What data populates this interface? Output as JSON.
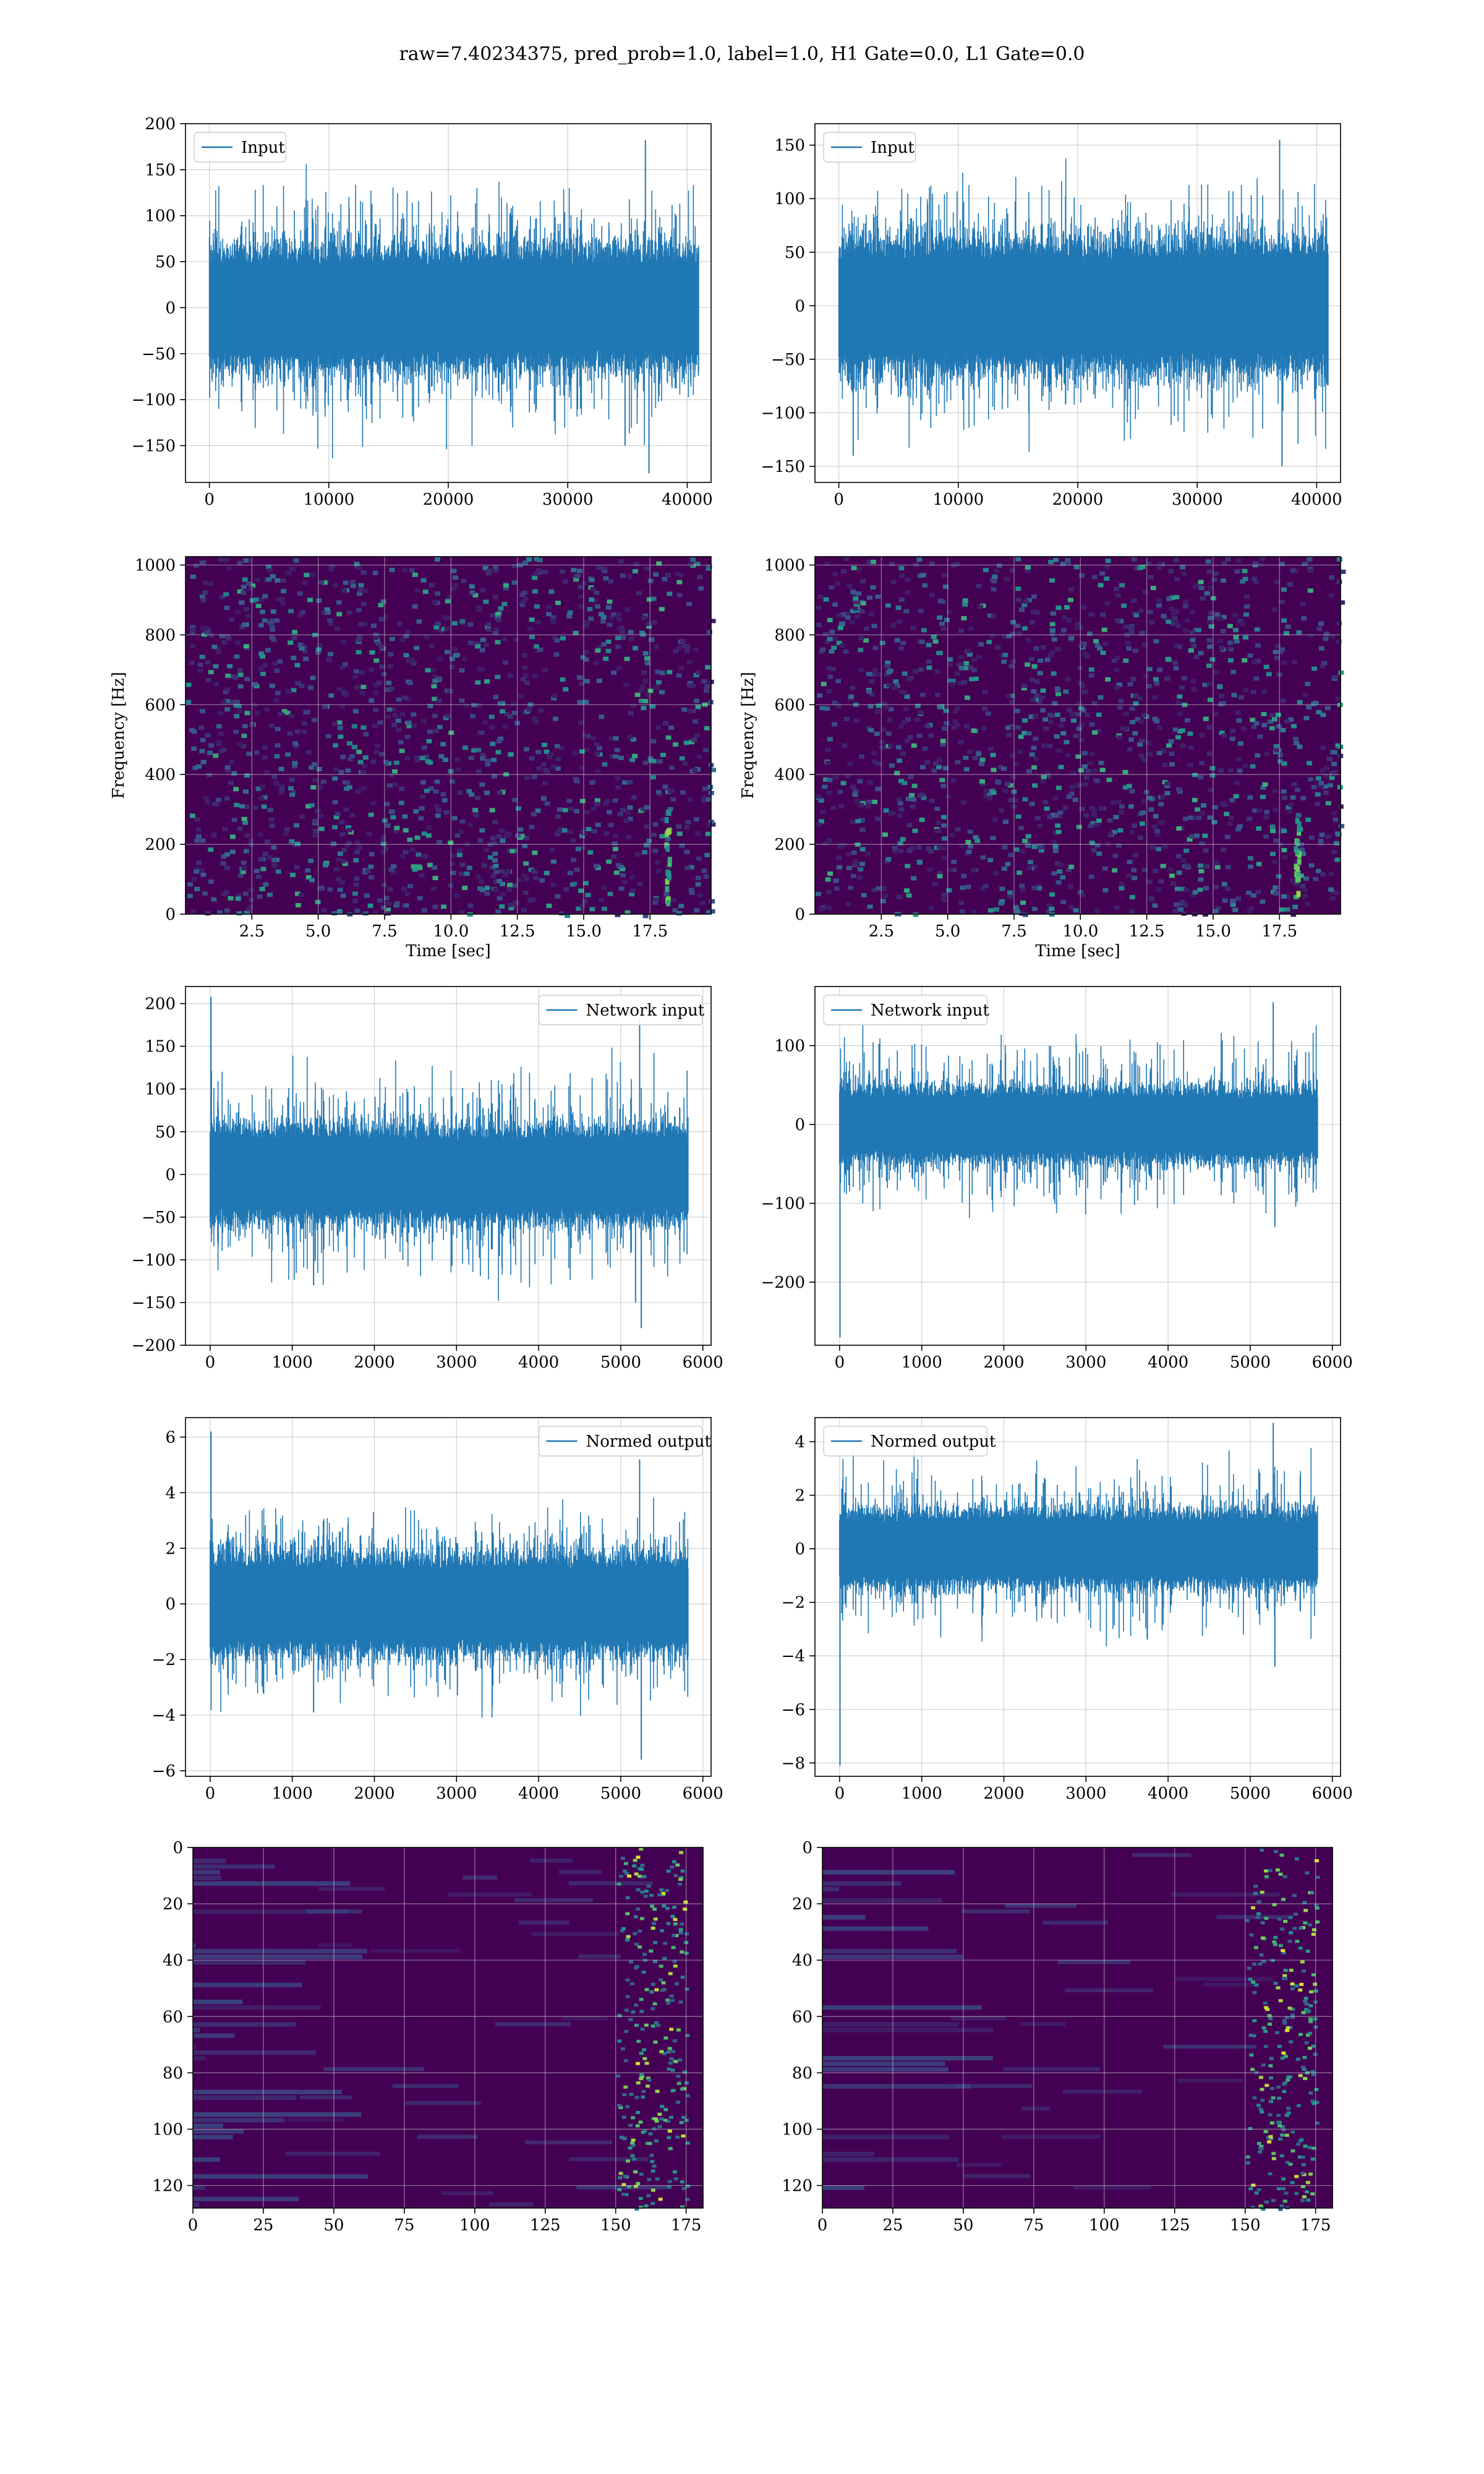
{
  "figure": {
    "suptitle": "raw=7.40234375, pred_prob=1.0, label=1.0, H1 Gate=0.0, L1 Gate=0.0"
  },
  "colors": {
    "line": "#1f77b4",
    "viridis_low": "#440154",
    "viridis_mid": "#21918c",
    "viridis_high": "#fde725",
    "grid": "#b0b0b0"
  },
  "chart_data": [
    {
      "id": "input-h1",
      "type": "line",
      "legend": "Input",
      "legend_loc": "upper-left",
      "xlim": [
        -2000,
        42000
      ],
      "ylim": [
        -190,
        200
      ],
      "xticks": [
        0,
        10000,
        20000,
        30000,
        40000
      ],
      "xticklabels": [
        "0",
        "10000",
        "20000",
        "30000",
        "40000"
      ],
      "yticks": [
        -150,
        -100,
        -50,
        0,
        50,
        100,
        150,
        200
      ],
      "yticklabels": [
        "−150",
        "−100",
        "−50",
        "0",
        "50",
        "100",
        "150",
        "200"
      ],
      "grid": true,
      "signal": {
        "x_start": 0,
        "x_end": 40960,
        "body_amplitude": 70,
        "peak_amplitude": 125,
        "spikes": [
          {
            "x": 36500,
            "y": 182
          },
          {
            "x": 36800,
            "y": -180
          },
          {
            "x": 34800,
            "y": -150
          }
        ]
      }
    },
    {
      "id": "input-l1",
      "type": "line",
      "legend": "Input",
      "legend_loc": "upper-left",
      "xlim": [
        -2000,
        42000
      ],
      "ylim": [
        -165,
        170
      ],
      "xticks": [
        0,
        10000,
        20000,
        30000,
        40000
      ],
      "xticklabels": [
        "0",
        "10000",
        "20000",
        "30000",
        "40000"
      ],
      "yticks": [
        -150,
        -100,
        -50,
        0,
        50,
        100,
        150
      ],
      "yticklabels": [
        "−150",
        "−100",
        "−50",
        "0",
        "50",
        "100",
        "150"
      ],
      "grid": true,
      "signal": {
        "x_start": 0,
        "x_end": 40960,
        "body_amplitude": 65,
        "peak_amplitude": 110,
        "spikes": [
          {
            "x": 36900,
            "y": 155
          },
          {
            "x": 37100,
            "y": -150
          },
          {
            "x": 1200,
            "y": -140
          }
        ]
      }
    },
    {
      "id": "spectrogram-h1",
      "type": "heatmap",
      "colormap": "viridis",
      "xlim": [
        0,
        19.8
      ],
      "ylim": [
        0,
        1024
      ],
      "xticks": [
        2.5,
        5.0,
        7.5,
        10.0,
        12.5,
        15.0,
        17.5
      ],
      "xticklabels": [
        "2.5",
        "5.0",
        "7.5",
        "10.0",
        "12.5",
        "15.0",
        "17.5"
      ],
      "yticks": [
        0,
        200,
        400,
        600,
        800,
        1000
      ],
      "yticklabels": [
        "0",
        "200",
        "400",
        "600",
        "800",
        "1000"
      ],
      "xlabel": "Time [sec]",
      "ylabel": "Frequency [Hz]",
      "grid": true,
      "feature": {
        "x": 18.1,
        "f_min": 40,
        "f_max": 330
      }
    },
    {
      "id": "spectrogram-l1",
      "type": "heatmap",
      "colormap": "viridis",
      "xlim": [
        0,
        19.8
      ],
      "ylim": [
        0,
        1024
      ],
      "xticks": [
        2.5,
        5.0,
        7.5,
        10.0,
        12.5,
        15.0,
        17.5
      ],
      "xticklabels": [
        "2.5",
        "5.0",
        "7.5",
        "10.0",
        "12.5",
        "15.0",
        "17.5"
      ],
      "yticks": [
        0,
        200,
        400,
        600,
        800,
        1000
      ],
      "yticklabels": [
        "0",
        "200",
        "400",
        "600",
        "800",
        "1000"
      ],
      "xlabel": "Time [sec]",
      "ylabel": "Frequency [Hz]",
      "grid": true,
      "feature": {
        "x": 18.1,
        "f_min": 60,
        "f_max": 280
      }
    },
    {
      "id": "network-input-h1",
      "type": "line",
      "legend": "Network input",
      "legend_loc": "upper-right",
      "xlim": [
        -300,
        6100
      ],
      "ylim": [
        -200,
        220
      ],
      "xticks": [
        0,
        1000,
        2000,
        3000,
        4000,
        5000,
        6000
      ],
      "xticklabels": [
        "0",
        "1000",
        "2000",
        "3000",
        "4000",
        "5000",
        "6000"
      ],
      "yticks": [
        -200,
        -150,
        -100,
        -50,
        0,
        50,
        100,
        150,
        200
      ],
      "yticklabels": [
        "−200",
        "−150",
        "−100",
        "−50",
        "0",
        "50",
        "100",
        "150",
        "200"
      ],
      "grid": true,
      "signal": {
        "x_start": 0,
        "x_end": 5820,
        "body_amplitude": 60,
        "peak_amplitude": 115,
        "spikes": [
          {
            "x": 10,
            "y": 208
          },
          {
            "x": 5230,
            "y": 182
          },
          {
            "x": 5250,
            "y": -180
          },
          {
            "x": 5180,
            "y": -150
          },
          {
            "x": 1260,
            "y": -130
          }
        ]
      }
    },
    {
      "id": "network-input-l1",
      "type": "line",
      "legend": "Network input",
      "legend_loc": "upper-left",
      "xlim": [
        -300,
        6100
      ],
      "ylim": [
        -280,
        175
      ],
      "xticks": [
        0,
        1000,
        2000,
        3000,
        4000,
        5000,
        6000
      ],
      "xticklabels": [
        "0",
        "1000",
        "2000",
        "3000",
        "4000",
        "5000",
        "6000"
      ],
      "yticks": [
        -200,
        -100,
        0,
        100
      ],
      "yticklabels": [
        "−200",
        "−100",
        "0",
        "100"
      ],
      "grid": true,
      "signal": {
        "x_start": 0,
        "x_end": 5820,
        "body_amplitude": 50,
        "peak_amplitude": 100,
        "spikes": [
          {
            "x": 5,
            "y": -270
          },
          {
            "x": 5280,
            "y": 155
          },
          {
            "x": 5300,
            "y": -130
          }
        ]
      }
    },
    {
      "id": "normed-output-h1",
      "type": "line",
      "legend": "Normed output",
      "legend_loc": "upper-right",
      "xlim": [
        -300,
        6100
      ],
      "ylim": [
        -6.2,
        6.7
      ],
      "xticks": [
        0,
        1000,
        2000,
        3000,
        4000,
        5000,
        6000
      ],
      "xticklabels": [
        "0",
        "1000",
        "2000",
        "3000",
        "4000",
        "5000",
        "6000"
      ],
      "yticks": [
        -6,
        -4,
        -2,
        0,
        2,
        4,
        6
      ],
      "yticklabels": [
        "−6",
        "−4",
        "−2",
        "0",
        "2",
        "4",
        "6"
      ],
      "grid": true,
      "signal": {
        "x_start": 0,
        "x_end": 5820,
        "body_amplitude": 1.9,
        "peak_amplitude": 3.2,
        "spikes": [
          {
            "x": 10,
            "y": 6.2
          },
          {
            "x": 5230,
            "y": 5.2
          },
          {
            "x": 5250,
            "y": -5.6
          },
          {
            "x": 1260,
            "y": -3.9
          }
        ]
      }
    },
    {
      "id": "normed-output-l1",
      "type": "line",
      "legend": "Normed output",
      "legend_loc": "upper-left",
      "xlim": [
        -300,
        6100
      ],
      "ylim": [
        -8.5,
        4.9
      ],
      "xticks": [
        0,
        1000,
        2000,
        3000,
        4000,
        5000,
        6000
      ],
      "xticklabels": [
        "0",
        "1000",
        "2000",
        "3000",
        "4000",
        "5000",
        "6000"
      ],
      "yticks": [
        -8,
        -6,
        -4,
        -2,
        0,
        2,
        4
      ],
      "yticklabels": [
        "−8",
        "−6",
        "−4",
        "−2",
        "0",
        "2",
        "4"
      ],
      "grid": true,
      "signal": {
        "x_start": 0,
        "x_end": 5820,
        "body_amplitude": 1.5,
        "peak_amplitude": 2.9,
        "spikes": [
          {
            "x": 5,
            "y": -8.1
          },
          {
            "x": 5280,
            "y": 4.7
          },
          {
            "x": 5300,
            "y": -4.4
          }
        ]
      }
    },
    {
      "id": "feature-map-h1",
      "type": "heatmap",
      "colormap": "viridis",
      "xlim": [
        0,
        181
      ],
      "ylim": [
        128,
        0
      ],
      "xticks": [
        0,
        25,
        50,
        75,
        100,
        125,
        150,
        175
      ],
      "xticklabels": [
        "0",
        "25",
        "50",
        "75",
        "100",
        "125",
        "150",
        "175"
      ],
      "yticks": [
        0,
        20,
        40,
        60,
        80,
        100,
        120
      ],
      "yticklabels": [
        "0",
        "20",
        "40",
        "60",
        "80",
        "100",
        "120"
      ],
      "grid": true,
      "rows": 128,
      "cols": 181,
      "feature": {
        "col_min": 150,
        "col_max": 175
      }
    },
    {
      "id": "feature-map-l1",
      "type": "heatmap",
      "colormap": "viridis",
      "xlim": [
        0,
        181
      ],
      "ylim": [
        128,
        0
      ],
      "xticks": [
        0,
        25,
        50,
        75,
        100,
        125,
        150,
        175
      ],
      "xticklabels": [
        "0",
        "25",
        "50",
        "75",
        "100",
        "125",
        "150",
        "175"
      ],
      "yticks": [
        0,
        20,
        40,
        60,
        80,
        100,
        120
      ],
      "yticklabels": [
        "0",
        "20",
        "40",
        "60",
        "80",
        "100",
        "120"
      ],
      "grid": true,
      "rows": 128,
      "cols": 181,
      "feature": {
        "col_min": 150,
        "col_max": 175
      }
    }
  ]
}
